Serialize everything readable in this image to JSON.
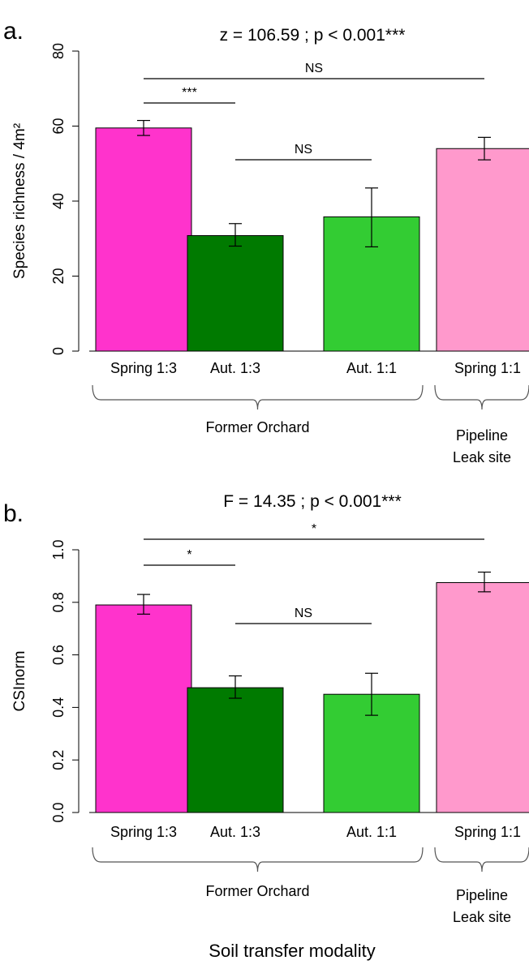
{
  "colors": {
    "spring_1_3": "#ff33cc",
    "aut_1_3": "#007a00",
    "aut_1_1": "#33cc33",
    "spring_1_1_pipeline": "#ff99cc"
  },
  "xlabel": "Soil transfer modality",
  "chart_data": [
    {
      "type": "bar",
      "panel_label": "a.",
      "title": "z = 106.59 ; p < 0.001***",
      "ylabel": "Species richness / 4m²",
      "ylim": [
        0,
        80
      ],
      "yticks": [
        "0",
        "20",
        "40",
        "60",
        "80"
      ],
      "categories": [
        "Spring 1:3",
        "Aut. 1:3",
        "Aut. 1:1",
        "Spring 1:1"
      ],
      "values": [
        59.5,
        30.8,
        35.8,
        54.0
      ],
      "error_low": [
        57.5,
        28.0,
        27.8,
        51.0
      ],
      "error_high": [
        61.5,
        34.0,
        43.5,
        57.0
      ],
      "groups": [
        {
          "label": "Former Orchard",
          "categories": [
            "Spring 1:3",
            "Aut. 1:3",
            "Aut. 1:1"
          ]
        },
        {
          "label_lines": [
            "Pipeline",
            "Leak site"
          ],
          "categories": [
            "Spring 1:1"
          ]
        }
      ],
      "comparisons": [
        {
          "from": "Spring 1:3",
          "to": "Aut. 1:3",
          "label": "***"
        },
        {
          "from": "Aut. 1:3",
          "to": "Aut. 1:1",
          "label": "NS"
        },
        {
          "from": "Spring 1:3",
          "to": "Spring 1:1",
          "label": "NS"
        }
      ]
    },
    {
      "type": "bar",
      "panel_label": "b.",
      "title": "F = 14.35 ; p < 0.001***",
      "ylabel": "CSInorm",
      "ylim": [
        0,
        1
      ],
      "yticks": [
        "0.0",
        "0.2",
        "0.4",
        "0.6",
        "0.8",
        "1.0"
      ],
      "categories": [
        "Spring 1:3",
        "Aut. 1:3",
        "Aut. 1:1",
        "Spring 1:1"
      ],
      "values": [
        0.79,
        0.475,
        0.45,
        0.875
      ],
      "error_low": [
        0.755,
        0.435,
        0.37,
        0.84
      ],
      "error_high": [
        0.83,
        0.52,
        0.53,
        0.915
      ],
      "groups": [
        {
          "label": "Former Orchard",
          "categories": [
            "Spring 1:3",
            "Aut. 1:3",
            "Aut. 1:1"
          ]
        },
        {
          "label_lines": [
            "Pipeline",
            "Leak site"
          ],
          "categories": [
            "Spring 1:1"
          ]
        }
      ],
      "comparisons": [
        {
          "from": "Spring 1:3",
          "to": "Aut. 1:3",
          "label": "*"
        },
        {
          "from": "Aut. 1:3",
          "to": "Aut. 1:1",
          "label": "NS"
        },
        {
          "from": "Spring 1:3",
          "to": "Spring 1:1",
          "label": "*"
        }
      ]
    }
  ]
}
